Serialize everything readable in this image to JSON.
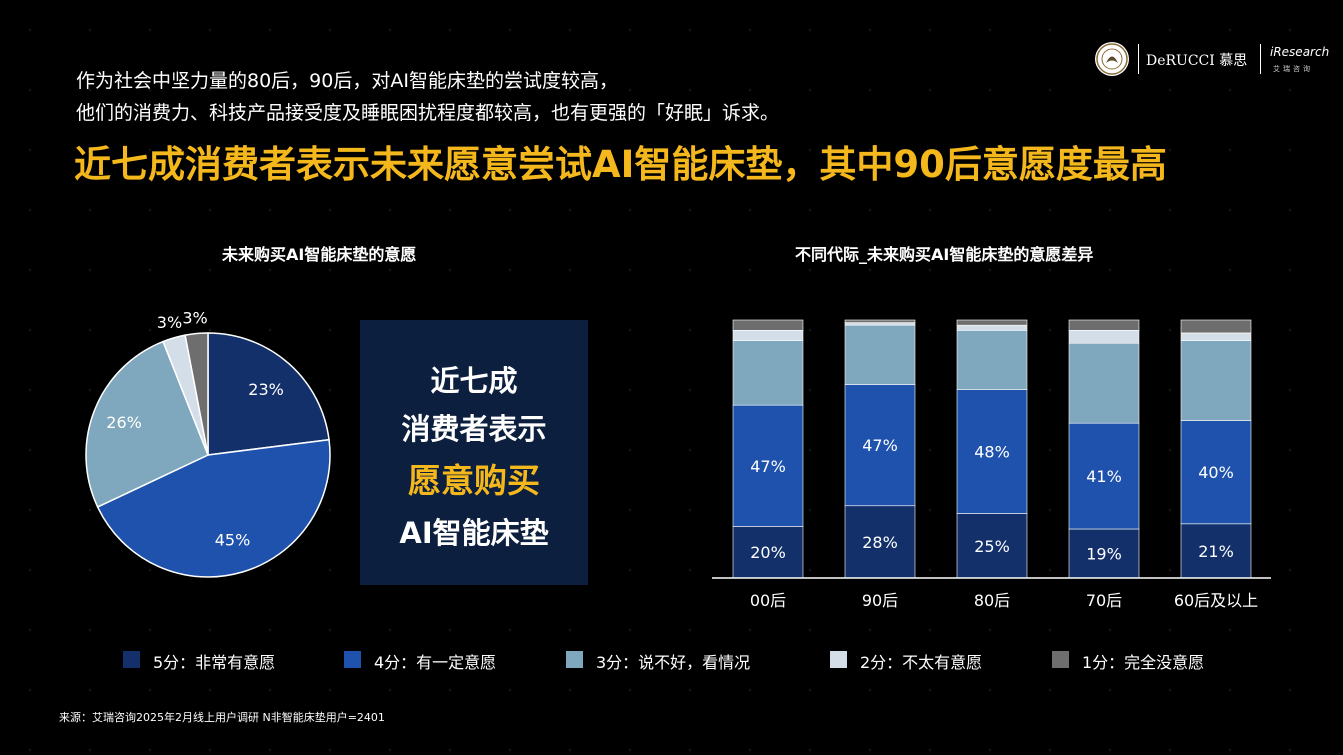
{
  "header": {
    "intro_line1": "作为社会中坚力量的80后，90后，对AI智能床垫的尝试度较高，",
    "intro_line2": "他们的消费力、科技产品接受度及睡眠困扰程度都较高，也有更强的「好眠」诉求。",
    "headline": "近七成消费者表示未来愿意尝试AI智能床垫，其中90后意愿度最高",
    "logo_brand1": "DeRUCCI 慕思",
    "logo_brand2": "iResearch",
    "logo_brand2_sub": "艾瑞咨询"
  },
  "callout": {
    "line1": "近七成",
    "line2": "消费者表示",
    "line3": "愿意购买",
    "line4": "AI智能床垫"
  },
  "legend": {
    "items": [
      {
        "label": "5分：非常有意愿",
        "color": "#13306a"
      },
      {
        "label": "4分：有一定意愿",
        "color": "#1f52ad"
      },
      {
        "label": "3分：说不好，看情况",
        "color": "#7fa7bd"
      },
      {
        "label": "2分：不太有意愿",
        "color": "#d4dee8"
      },
      {
        "label": "1分：完全没意愿",
        "color": "#6e6e6e"
      }
    ]
  },
  "source": "来源：艾瑞咨询2025年2月线上用户调研 N非智能床垫用户=2401",
  "chart_data": [
    {
      "type": "pie",
      "title": "未来购买AI智能床垫的意愿",
      "categories": [
        "5分：非常有意愿",
        "4分：有一定意愿",
        "3分：说不好，看情况",
        "2分：不太有意愿",
        "1分：完全没意愿"
      ],
      "values": [
        23,
        45,
        26,
        3,
        3
      ],
      "labels": [
        "23%",
        "45%",
        "26%",
        "3%",
        "3%"
      ],
      "colors": [
        "#13306a",
        "#1f52ad",
        "#7fa7bd",
        "#d4dee8",
        "#6e6e6e"
      ],
      "start": "12 o'clock, clockwise"
    },
    {
      "type": "bar",
      "stacked": true,
      "normalized_100": true,
      "title": "不同代际_未来购买AI智能床垫的意愿差异",
      "categories": [
        "00后",
        "90后",
        "80后",
        "70后",
        "60后及以上"
      ],
      "series": [
        {
          "name": "5分：非常有意愿",
          "values": [
            20,
            28,
            25,
            19,
            21
          ],
          "color": "#13306a",
          "labels": [
            "20%",
            "28%",
            "25%",
            "19%",
            "21%"
          ]
        },
        {
          "name": "4分：有一定意愿",
          "values": [
            47,
            47,
            48,
            41,
            40
          ],
          "color": "#1f52ad",
          "labels": [
            "47%",
            "47%",
            "48%",
            "41%",
            "40%"
          ]
        },
        {
          "name": "3分：说不好，看情况",
          "values": [
            25,
            23,
            23,
            31,
            31
          ],
          "color": "#7fa7bd"
        },
        {
          "name": "2分：不太有意愿",
          "values": [
            4,
            1,
            2,
            5,
            3
          ],
          "color": "#d4dee8"
        },
        {
          "name": "1分：完全没意愿",
          "values": [
            4,
            1,
            2,
            4,
            5
          ],
          "color": "#6e6e6e"
        }
      ],
      "ylim": [
        0,
        100
      ],
      "grid": false,
      "legend": "bottom"
    }
  ]
}
